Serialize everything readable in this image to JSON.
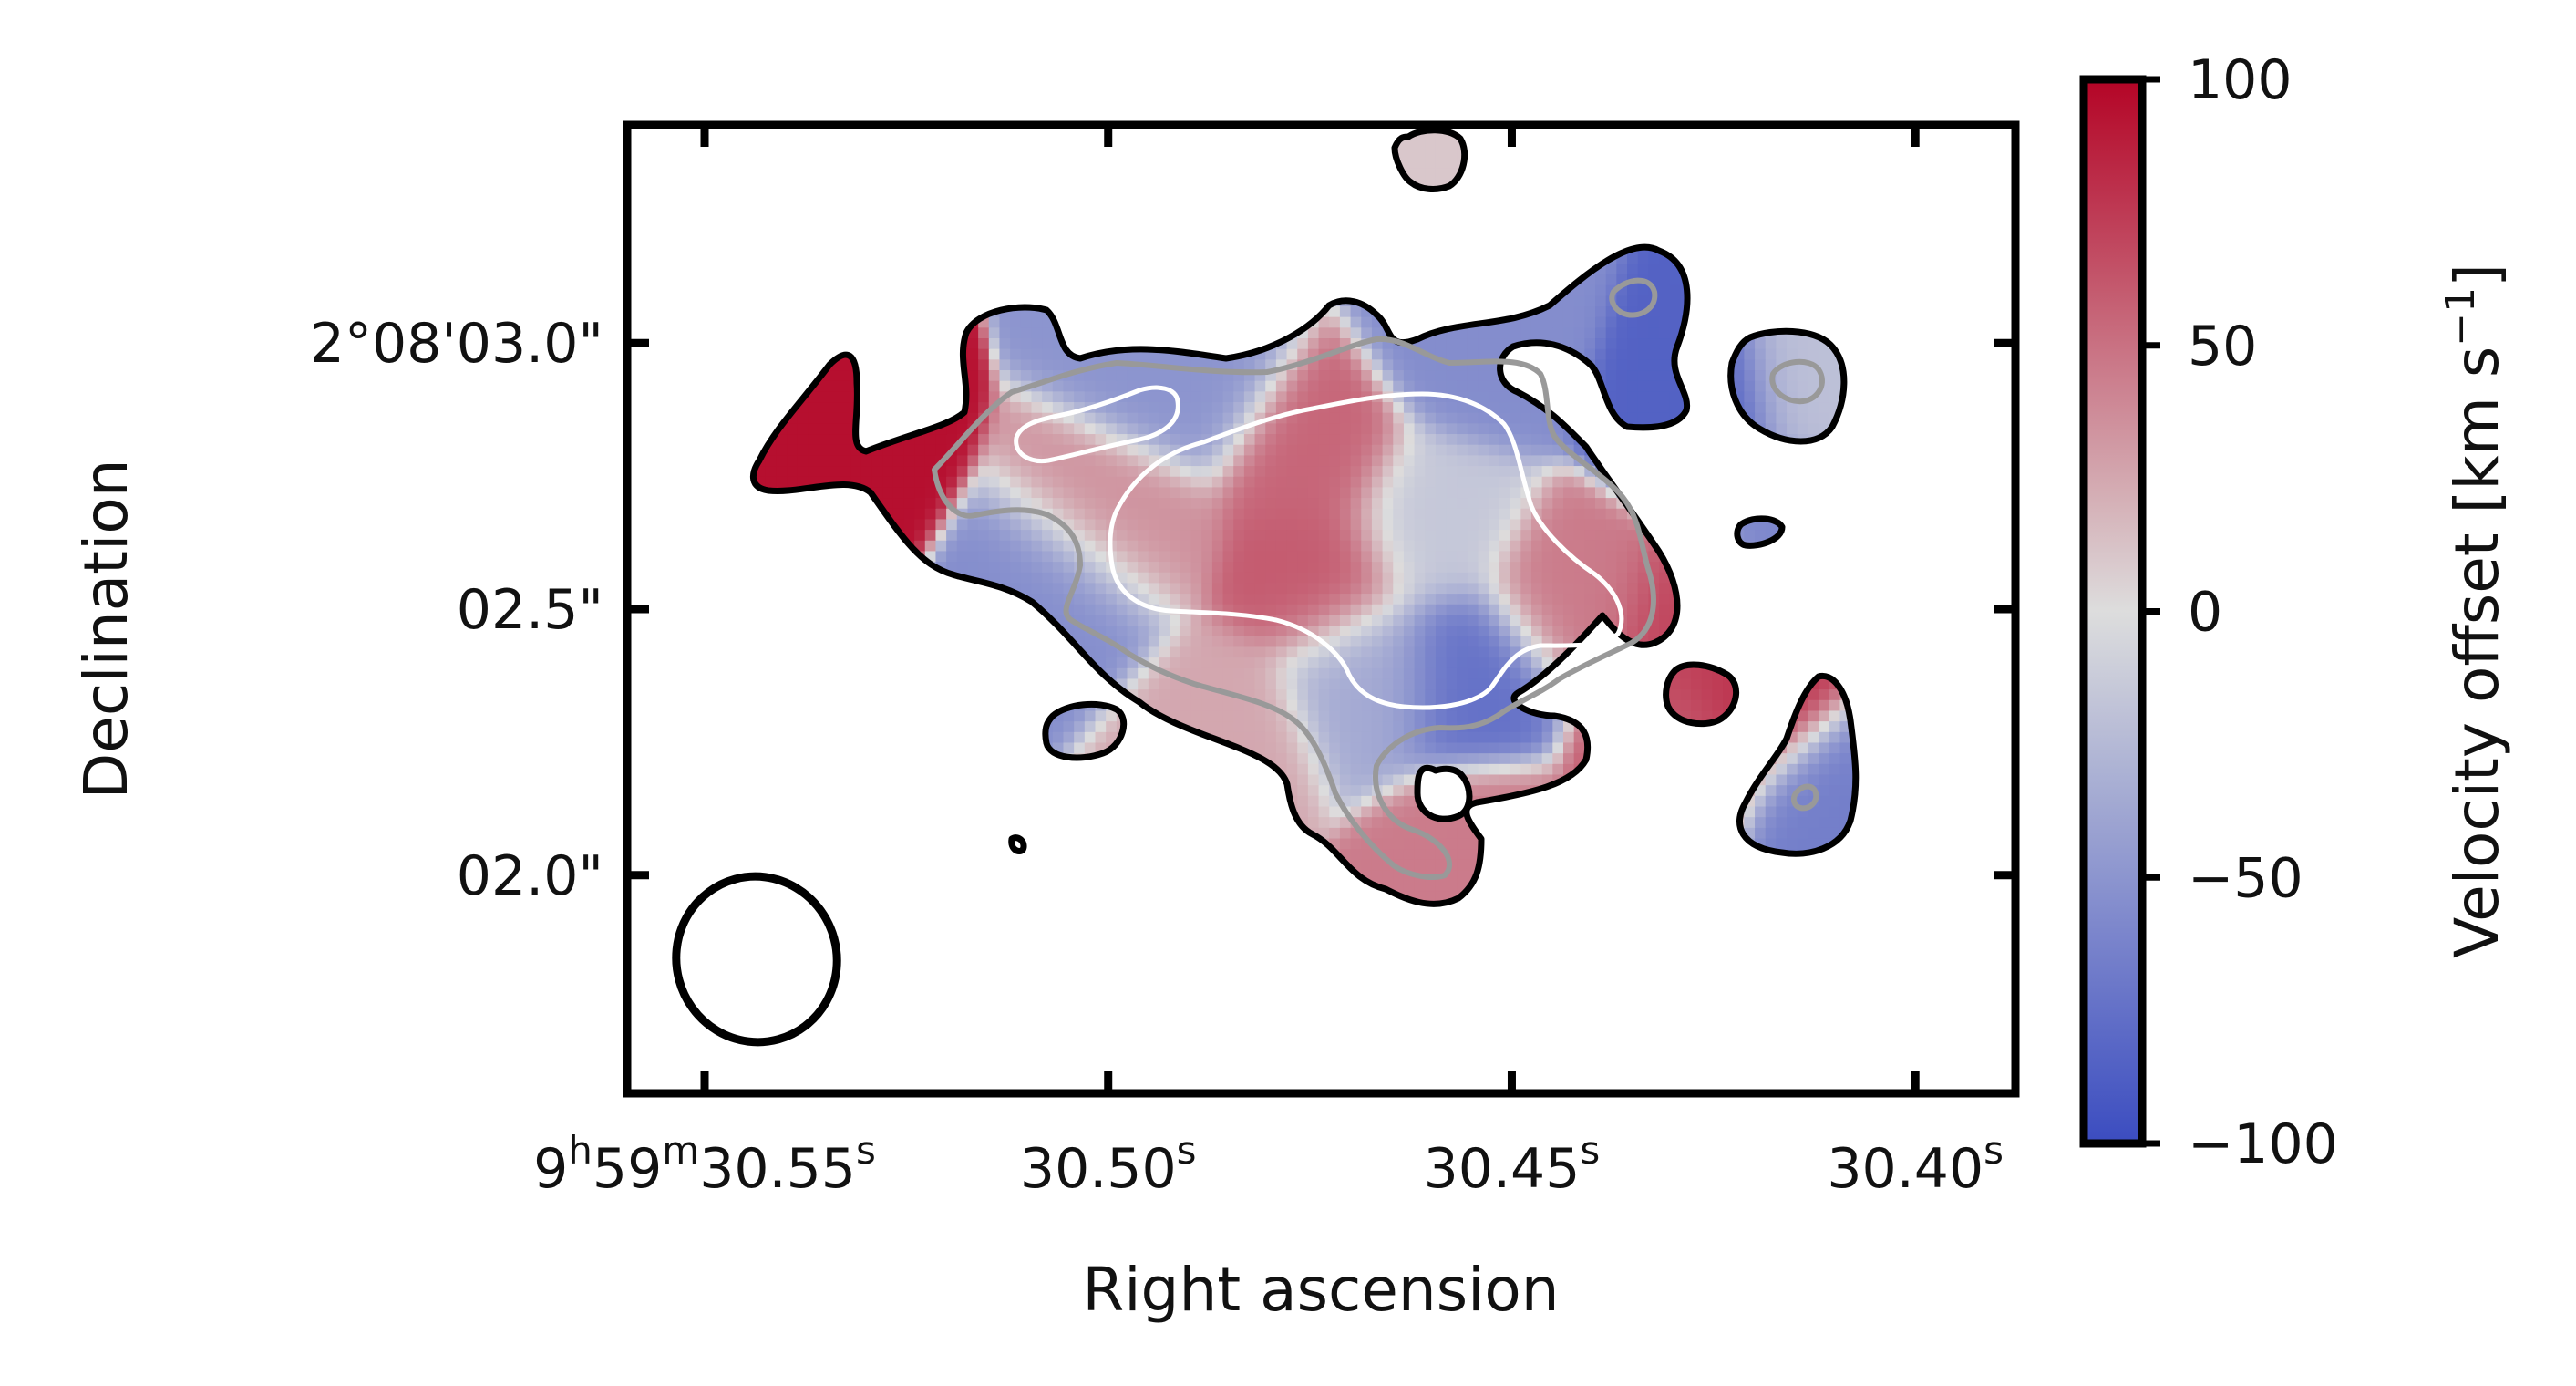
{
  "chart_data": {
    "type": "heatmap",
    "title": "",
    "xlabel": "Right ascension",
    "ylabel": "Declination",
    "x_ticks": [
      {
        "value": 30.55,
        "parts": [
          [
            "9",
            "n"
          ],
          [
            "h",
            "s"
          ],
          [
            "59",
            "n"
          ],
          [
            "m",
            "s"
          ],
          [
            "30.55",
            "n"
          ],
          [
            "s",
            "s"
          ]
        ]
      },
      {
        "value": 30.5,
        "parts": [
          [
            "30.50",
            "n"
          ],
          [
            "s",
            "s"
          ]
        ]
      },
      {
        "value": 30.45,
        "parts": [
          [
            "30.45",
            "n"
          ],
          [
            "s",
            "s"
          ]
        ]
      },
      {
        "value": 30.4,
        "parts": [
          [
            "30.40",
            "n"
          ],
          [
            "s",
            "s"
          ]
        ]
      }
    ],
    "y_ticks": [
      {
        "value": 3.0,
        "label": "2°08'03.0\""
      },
      {
        "value": 2.5,
        "label": "02.5\""
      },
      {
        "value": 2.0,
        "label": "02.0\""
      }
    ],
    "xlim": [
      30.5596,
      30.3876
    ],
    "ylim": [
      1.59,
      3.41
    ],
    "colorbar": {
      "label": "Velocity offset [km s",
      "label_sup": "−1",
      "label_end": "]",
      "cmap": "coolwarm",
      "range": [
        -100,
        100
      ],
      "ticks": [
        {
          "value": 100,
          "label": "100"
        },
        {
          "value": 50,
          "label": "50"
        },
        {
          "value": 0,
          "label": "0"
        },
        {
          "value": -50,
          "label": "−50"
        },
        {
          "value": -100,
          "label": "−100"
        }
      ]
    },
    "colors": {
      "cmap_low": "#3b4cc0",
      "cmap_mid": "#dddddd",
      "cmap_high": "#b40426",
      "contour_outer": "#000000",
      "contour_mid": "#999999",
      "contour_inner": "#ffffff"
    },
    "velocity_field": {
      "grid_step_arcsec": 0.02,
      "components": [
        {
          "ra": 30.475,
          "dec": 2.78,
          "v": 55
        },
        {
          "ra": 30.474,
          "dec": 2.56,
          "v": 60
        },
        {
          "ra": 30.498,
          "dec": 2.66,
          "v": 35
        },
        {
          "ra": 30.4425,
          "dec": 2.52,
          "v": 45
        },
        {
          "ra": 30.455,
          "dec": 2.38,
          "v": -75
        },
        {
          "ra": 30.49,
          "dec": 2.92,
          "v": -50
        },
        {
          "ra": 30.4535,
          "dec": 2.99,
          "v": -55
        },
        {
          "ra": 30.427,
          "dec": 2.88,
          "v": -85
        },
        {
          "ra": 30.536,
          "dec": 2.79,
          "v": 95
        },
        {
          "ra": 30.505,
          "dec": 2.52,
          "v": -55
        },
        {
          "ra": 30.4275,
          "dec": 2.46,
          "v": 70
        },
        {
          "ra": 30.4535,
          "dec": 2.03,
          "v": 45
        },
        {
          "ra": 30.43,
          "dec": 2.24,
          "v": 60
        },
        {
          "ra": 30.46,
          "dec": 2.66,
          "v": -15
        },
        {
          "ra": 30.468,
          "dec": 2.38,
          "v": -35
        }
      ],
      "islands": [
        {
          "ra": 30.486,
          "dec": 2.28,
          "v": 25
        },
        {
          "ra": 30.4198,
          "dec": 2.34,
          "v": 80
        },
        {
          "ra": 30.4095,
          "dec": 2.15,
          "v": -65
        },
        {
          "ra": 30.412,
          "dec": 2.92,
          "v": -20
        },
        {
          "ra": 30.41575,
          "dec": 2.64,
          "v": -60
        },
        {
          "ra": 30.4585,
          "dec": 3.37,
          "v": 10
        }
      ]
    },
    "beam": {
      "ra": 30.5363,
      "dec": 1.8,
      "major_arcsec": 0.32,
      "minor_arcsec": 0.3,
      "pa_deg": -15
    }
  }
}
